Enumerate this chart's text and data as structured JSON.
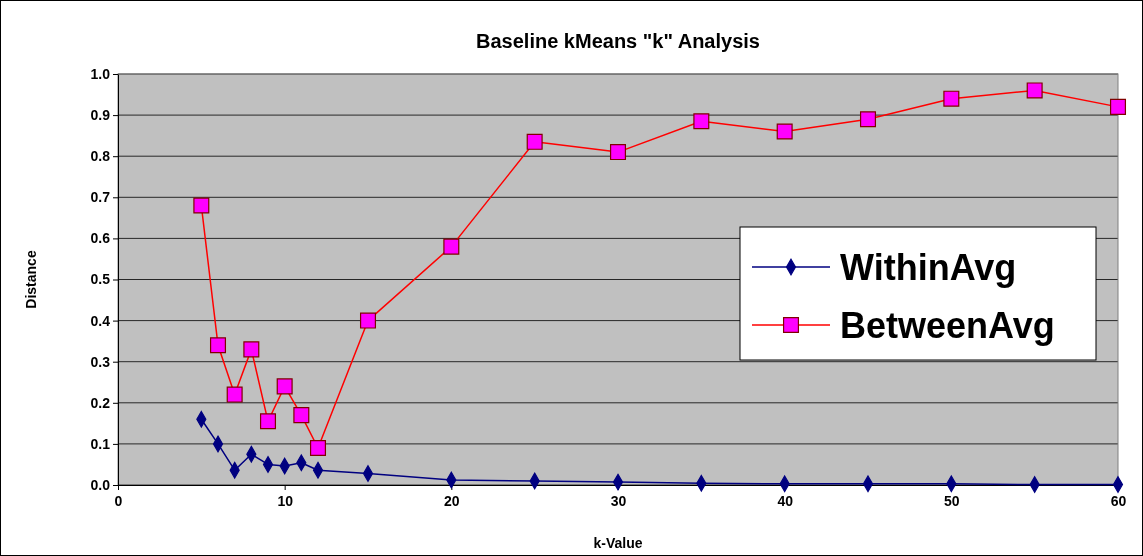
{
  "chart_data": {
    "type": "line",
    "title": "Baseline kMeans \"k\" Analysis",
    "xlabel": "k-Value",
    "ylabel": "Distance",
    "x": [
      5,
      6,
      7,
      8,
      9,
      10,
      11,
      12,
      15,
      20,
      25,
      30,
      35,
      40,
      45,
      50,
      55,
      60
    ],
    "xlim": [
      0,
      60
    ],
    "xticks": [
      0,
      10,
      20,
      30,
      40,
      50,
      60
    ],
    "ylim": [
      0,
      1
    ],
    "yticks": [
      {
        "value": 0,
        "label": "0.0"
      },
      {
        "value": 0.1,
        "label": "0.1"
      },
      {
        "value": 0.2,
        "label": "0.2"
      },
      {
        "value": 0.3,
        "label": "0.3"
      },
      {
        "value": 0.4,
        "label": "0.4"
      },
      {
        "value": 0.5,
        "label": "0.5"
      },
      {
        "value": 0.6,
        "label": "0.6"
      },
      {
        "value": 0.7,
        "label": "0.7"
      },
      {
        "value": 0.8,
        "label": "0.8"
      },
      {
        "value": 0.9,
        "label": "0.9"
      },
      {
        "value": 1,
        "label": "1.0"
      }
    ],
    "grid": "y",
    "legend": "right",
    "series": [
      {
        "name": "WithinAvg",
        "color": "#000080",
        "marker": "diamond",
        "values": [
          0.16,
          0.1,
          0.036,
          0.075,
          0.05,
          0.046,
          0.054,
          0.036,
          0.028,
          0.012,
          0.01,
          0.007,
          0.004,
          0.003,
          0.003,
          0.003,
          0.001,
          0.001
        ]
      },
      {
        "name": "BetweenAvg",
        "color": "#ff0000",
        "marker": "square",
        "values": [
          0.68,
          0.34,
          0.22,
          0.33,
          0.155,
          0.24,
          0.17,
          0.09,
          0.4,
          0.58,
          0.835,
          0.81,
          0.885,
          0.86,
          0.89,
          0.94,
          0.96,
          0.92
        ]
      }
    ]
  }
}
